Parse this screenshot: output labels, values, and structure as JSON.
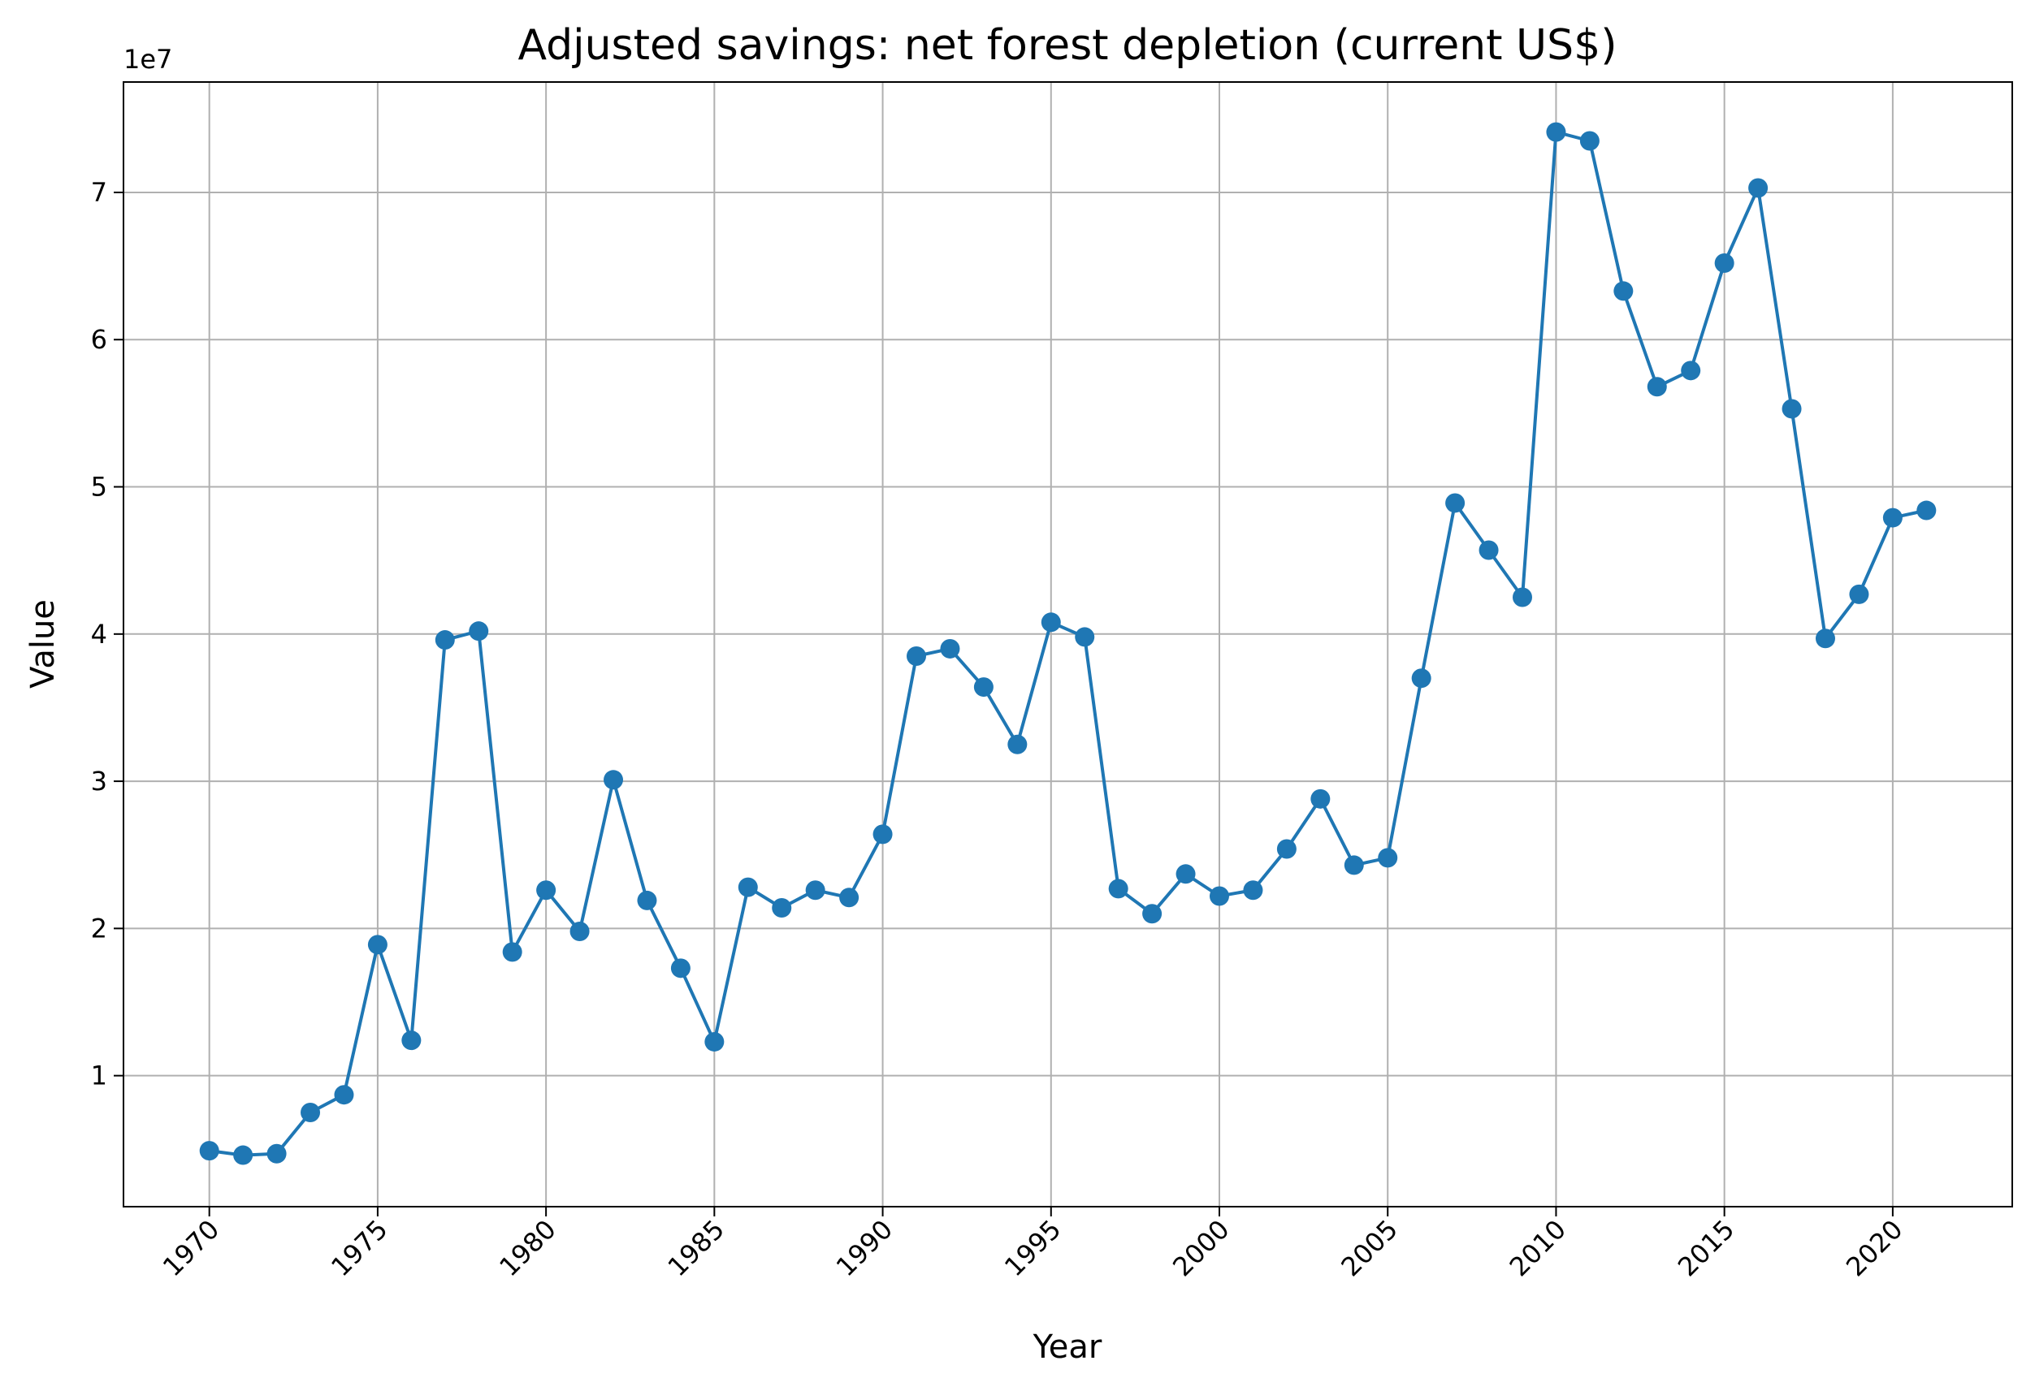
{
  "chart_data": {
    "type": "line",
    "title": "Adjusted savings: net forest depletion (current US$)",
    "xlabel": "Year",
    "ylabel": "Value",
    "y_offset_label": "1e7",
    "y_scale_multiplier": 10000000,
    "xlim": [
      1967.45,
      2023.55
    ],
    "ylim": [
      1100000,
      77500000
    ],
    "x_ticks": [
      1970,
      1975,
      1980,
      1985,
      1990,
      1995,
      2000,
      2005,
      2010,
      2015,
      2020
    ],
    "x_tick_labels": [
      "1970",
      "1975",
      "1980",
      "1985",
      "1990",
      "1995",
      "2000",
      "2005",
      "2010",
      "2015",
      "2020"
    ],
    "y_ticks": [
      10000000,
      20000000,
      30000000,
      40000000,
      50000000,
      60000000,
      70000000
    ],
    "y_tick_labels": [
      "1",
      "2",
      "3",
      "4",
      "5",
      "6",
      "7"
    ],
    "grid": true,
    "legend": false,
    "color": "#1f77b4",
    "marker": "circle",
    "series": [
      {
        "x": [
          1970,
          1971,
          1972,
          1973,
          1974,
          1975,
          1976,
          1977,
          1978,
          1979,
          1980,
          1981,
          1982,
          1983,
          1984,
          1985,
          1986,
          1987,
          1988,
          1989,
          1990,
          1991,
          1992,
          1993,
          1994,
          1995,
          1996,
          1997,
          1998,
          1999,
          2000,
          2001,
          2002,
          2003,
          2004,
          2005,
          2006,
          2007,
          2008,
          2009,
          2010,
          2011,
          2012,
          2013,
          2014,
          2015,
          2016,
          2017,
          2018,
          2019,
          2020,
          2021
        ],
        "values": [
          4900000,
          4600000,
          4700000,
          7500000,
          8700000,
          18900000,
          12400000,
          39600000,
          40200000,
          18400000,
          22600000,
          19800000,
          30100000,
          21900000,
          17300000,
          12300000,
          22800000,
          21400000,
          22600000,
          22100000,
          26400000,
          38500000,
          39000000,
          36400000,
          32500000,
          40800000,
          39800000,
          22700000,
          21000000,
          23700000,
          22200000,
          22600000,
          25400000,
          28800000,
          24300000,
          24800000,
          37000000,
          48900000,
          45700000,
          42500000,
          74100000,
          73500000,
          63300000,
          56800000,
          57900000,
          65200000,
          70300000,
          55300000,
          39700000,
          42700000,
          47900000,
          48400000
        ]
      }
    ]
  }
}
